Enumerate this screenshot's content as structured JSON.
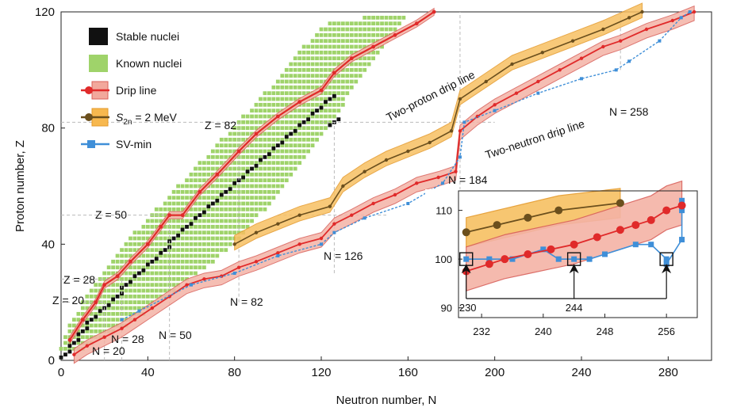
{
  "chart_data": [
    {
      "type": "scatter",
      "xlabel": "Neutron number, N",
      "ylabel": "Proton number, Z",
      "xlim": [
        0,
        300
      ],
      "ylim": [
        0,
        120
      ],
      "x_ticks": [
        "0",
        "40",
        "80",
        "120",
        "160",
        "200",
        "240",
        "280"
      ],
      "y_ticks": [
        "0",
        "40",
        "80",
        "120"
      ],
      "grid": false,
      "legend_position": "top-left",
      "legend": [
        {
          "label": "Stable nuclei",
          "symbol": "square",
          "color": "#111111"
        },
        {
          "label": "Known nuclei",
          "symbol": "square",
          "color": "#9fd36a"
        },
        {
          "label": "Drip line",
          "symbol": "line-band",
          "color": "#e02a2a",
          "band": "#f2a89c"
        },
        {
          "label": "S",
          "label_sub": "2n",
          "label_rest": " = 2 MeV",
          "symbol": "line-band",
          "color": "#6b4f1d",
          "band": "#f7b84f"
        },
        {
          "label": "SV-min",
          "symbol": "line-square",
          "color": "#3f8fd8"
        }
      ],
      "annotations": [
        {
          "text": "Two-proton drip line",
          "x": 48,
          "y": 85,
          "angle": -27
        },
        {
          "text": "Two-neutron drip line",
          "x": 189,
          "y": 77,
          "angle": -18
        },
        {
          "text": "Z = 82",
          "magic": "Z",
          "value": 82
        },
        {
          "text": "Z = 50",
          "magic": "Z",
          "value": 50
        },
        {
          "text": "Z = 28",
          "magic": "Z",
          "value": 28
        },
        {
          "text": "Z = 20",
          "magic": "Z",
          "value": 20
        },
        {
          "text": "N = 20",
          "magic": "N",
          "value": 20
        },
        {
          "text": "N = 28",
          "magic": "N",
          "value": 28
        },
        {
          "text": "N = 50",
          "magic": "N",
          "value": 50
        },
        {
          "text": "N = 82",
          "magic": "N",
          "value": 82
        },
        {
          "text": "N = 126",
          "magic": "N",
          "value": 126
        },
        {
          "text": "N = 184",
          "magic": "N",
          "value": 184
        },
        {
          "text": "N = 258",
          "magic": "N",
          "value": 258
        }
      ],
      "series": [
        {
          "name": "Two-proton drip line",
          "color": "#e02a2a",
          "points": [
            [
              4,
              7
            ],
            [
              10,
              14
            ],
            [
              16,
              20
            ],
            [
              20,
              26
            ],
            [
              26,
              29
            ],
            [
              32,
              34
            ],
            [
              40,
              40
            ],
            [
              46,
              46
            ],
            [
              50,
              50
            ],
            [
              56,
              50
            ],
            [
              64,
              58
            ],
            [
              72,
              64
            ],
            [
              82,
              72
            ],
            [
              90,
              78
            ],
            [
              100,
              84
            ],
            [
              110,
              89
            ],
            [
              120,
              93
            ],
            [
              126,
              99
            ],
            [
              134,
              104
            ],
            [
              144,
              108
            ],
            [
              154,
              112
            ],
            [
              164,
              116
            ],
            [
              172,
              120
            ]
          ]
        },
        {
          "name": "Two-neutron drip line",
          "color": "#e02a2a",
          "points": [
            [
              6,
              2
            ],
            [
              12,
              5
            ],
            [
              20,
              8
            ],
            [
              28,
              11
            ],
            [
              34,
              14
            ],
            [
              42,
              18
            ],
            [
              50,
              22
            ],
            [
              58,
              26
            ],
            [
              66,
              28
            ],
            [
              74,
              29
            ],
            [
              82,
              32
            ],
            [
              90,
              34
            ],
            [
              100,
              37
            ],
            [
              110,
              40
            ],
            [
              120,
              42
            ],
            [
              126,
              47
            ],
            [
              134,
              50
            ],
            [
              144,
              54
            ],
            [
              154,
              57
            ],
            [
              164,
              61
            ],
            [
              174,
              63
            ],
            [
              182,
              65
            ],
            [
              184,
              79
            ],
            [
              192,
              84
            ],
            [
              200,
              88
            ],
            [
              210,
              92
            ],
            [
              220,
              96
            ],
            [
              230,
              100
            ],
            [
              240,
              104
            ],
            [
              250,
              108
            ],
            [
              258,
              110
            ],
            [
              270,
              114
            ],
            [
              282,
              117
            ],
            [
              292,
              120
            ]
          ]
        },
        {
          "name": "S2n = 2 MeV",
          "color": "#6b4f1d",
          "points": [
            [
              80,
              40
            ],
            [
              90,
              44
            ],
            [
              100,
              47
            ],
            [
              110,
              50
            ],
            [
              124,
              53
            ],
            [
              130,
              60
            ],
            [
              140,
              65
            ],
            [
              150,
              69
            ],
            [
              160,
              72
            ],
            [
              170,
              75
            ],
            [
              180,
              79
            ],
            [
              184,
              90
            ],
            [
              196,
              96
            ],
            [
              208,
              102
            ],
            [
              222,
              106
            ],
            [
              236,
              110
            ],
            [
              250,
              114
            ],
            [
              262,
              118
            ],
            [
              268,
              120
            ]
          ]
        },
        {
          "name": "SV-min",
          "color": "#3f8fd8",
          "points": [
            [
              28,
              14
            ],
            [
              36,
              17
            ],
            [
              60,
              26
            ],
            [
              80,
              30
            ],
            [
              100,
              36
            ],
            [
              120,
              40
            ],
            [
              126,
              44
            ],
            [
              140,
              49
            ],
            [
              160,
              54
            ],
            [
              176,
              61
            ],
            [
              184,
              70
            ],
            [
              186,
              82
            ],
            [
              200,
              86
            ],
            [
              220,
              92
            ],
            [
              240,
              97
            ],
            [
              256,
              100
            ],
            [
              262,
              103
            ],
            [
              276,
              110
            ],
            [
              286,
              118
            ],
            [
              290,
              120
            ]
          ]
        }
      ],
      "nuclei": {
        "stable_valley_comment_free": true,
        "stable_points": [
          [
            2,
            2
          ],
          [
            6,
            6
          ],
          [
            10,
            10
          ],
          [
            14,
            14
          ],
          [
            20,
            18
          ],
          [
            26,
            22
          ],
          [
            30,
            26
          ],
          [
            36,
            30
          ],
          [
            42,
            34
          ],
          [
            48,
            38
          ],
          [
            52,
            42
          ],
          [
            58,
            46
          ],
          [
            64,
            50
          ],
          [
            70,
            54
          ],
          [
            76,
            58
          ],
          [
            82,
            62
          ],
          [
            88,
            66
          ],
          [
            94,
            70
          ],
          [
            100,
            74
          ],
          [
            106,
            78
          ],
          [
            112,
            82
          ],
          [
            118,
            86
          ],
          [
            124,
            90
          ],
          [
            126,
            82
          ]
        ],
        "known_band": [
          [
            0,
            4
          ],
          [
            4,
            12
          ],
          [
            10,
            20
          ],
          [
            18,
            28
          ],
          [
            26,
            36
          ],
          [
            34,
            44
          ],
          [
            44,
            52
          ],
          [
            54,
            60
          ],
          [
            64,
            68
          ],
          [
            74,
            76
          ],
          [
            84,
            84
          ],
          [
            94,
            92
          ],
          [
            104,
            100
          ],
          [
            112,
            108
          ],
          [
            120,
            114
          ],
          [
            128,
            118
          ],
          [
            140,
            118
          ],
          [
            152,
            120
          ],
          [
            160,
            120
          ],
          [
            150,
            108
          ],
          [
            140,
            98
          ],
          [
            132,
            90
          ],
          [
            124,
            80
          ],
          [
            114,
            70
          ],
          [
            104,
            60
          ],
          [
            92,
            50
          ],
          [
            80,
            40
          ],
          [
            68,
            32
          ],
          [
            56,
            26
          ],
          [
            46,
            20
          ],
          [
            36,
            14
          ],
          [
            26,
            10
          ],
          [
            16,
            6
          ],
          [
            8,
            2
          ]
        ]
      }
    },
    {
      "type": "line",
      "inset": true,
      "xlim": [
        229,
        260
      ],
      "ylim": [
        88,
        114
      ],
      "x_ticks": [
        "232",
        "240",
        "248",
        "256"
      ],
      "y_ticks": [
        "90",
        "100",
        "110"
      ],
      "annotations": [
        {
          "text": "230",
          "x": 230
        },
        {
          "text": "244",
          "x": 244
        }
      ],
      "series": [
        {
          "name": "Drip line",
          "color": "#e02a2a",
          "points": [
            [
              230,
              97.5
            ],
            [
              233,
              99
            ],
            [
              235,
              100
            ],
            [
              238,
              101
            ],
            [
              241,
              102
            ],
            [
              244,
              103
            ],
            [
              247,
              104.5
            ],
            [
              250,
              106
            ],
            [
              252,
              107
            ],
            [
              254,
              108
            ],
            [
              256,
              110
            ],
            [
              258,
              111
            ]
          ]
        },
        {
          "name": "S2n = 2 MeV",
          "color": "#6b4f1d",
          "points": [
            [
              230,
              105.5
            ],
            [
              234,
              107
            ],
            [
              238,
              108.5
            ],
            [
              242,
              110
            ],
            [
              250,
              111.5
            ]
          ]
        },
        {
          "name": "SV-min",
          "color": "#3f8fd8",
          "points": [
            [
              230,
              100
            ],
            [
              233,
              100
            ],
            [
              236,
              100
            ],
            [
              240,
              102
            ],
            [
              242,
              100
            ],
            [
              244,
              100
            ],
            [
              246,
              100
            ],
            [
              248,
              101
            ],
            [
              252,
              103
            ],
            [
              254,
              103
            ],
            [
              256,
              100
            ],
            [
              256,
              99
            ],
            [
              258,
              104
            ],
            [
              258,
              110
            ],
            [
              258,
              112
            ]
          ]
        }
      ],
      "markers": [
        {
          "x": 230,
          "y": 100
        },
        {
          "x": 244,
          "y": 100
        },
        {
          "x": 256,
          "y": 100
        }
      ]
    }
  ]
}
